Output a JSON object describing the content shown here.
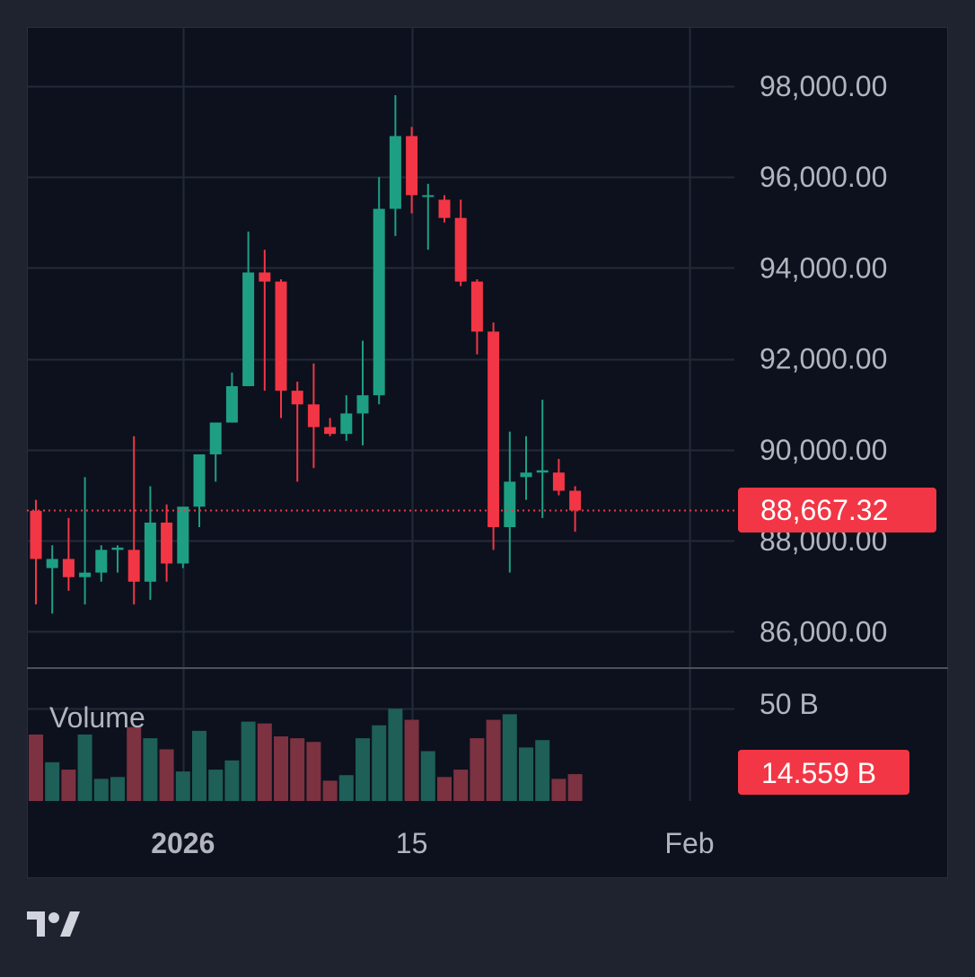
{
  "colors": {
    "up": "#1e9f84",
    "down": "#f23645",
    "up_volume": "#1e5f57",
    "down_volume": "#7c3241",
    "panel_bg": "#0c111d",
    "outer_bg": "#1f2330",
    "grid": "#232a37",
    "axis_text": "#b2b5be"
  },
  "chart_data": {
    "type": "candlestick",
    "price_axis": {
      "ylim": [
        85200,
        99300
      ],
      "ticks": [
        86000,
        88000,
        90000,
        92000,
        94000,
        96000,
        98000
      ],
      "tick_labels": [
        "86,000.00",
        "88,000.00",
        "90,000.00",
        "92,000.00",
        "94,000.00",
        "96,000.00",
        "98,000.00"
      ]
    },
    "time_axis": {
      "labels": [
        {
          "text": "2026",
          "index": 9,
          "bold": true
        },
        {
          "text": "15",
          "index": 23,
          "bold": false
        },
        {
          "text": "Feb",
          "index": 40,
          "bold": false
        }
      ],
      "slot_count": 44
    },
    "current_price": {
      "value": 88667.32,
      "label": "88,667.32"
    },
    "volume": {
      "label": "Volume",
      "max_label": "50 B",
      "current_label": "14.559 B",
      "current_value": 14.559,
      "ylim": [
        0,
        72
      ],
      "tick_value": 50
    },
    "candles": [
      {
        "o": 88660,
        "h": 88900,
        "l": 86600,
        "c": 87600,
        "v": 36
      },
      {
        "o": 87400,
        "h": 87900,
        "l": 86400,
        "c": 87600,
        "v": 21
      },
      {
        "o": 87600,
        "h": 88500,
        "l": 86900,
        "c": 87200,
        "v": 17
      },
      {
        "o": 87200,
        "h": 89400,
        "l": 86600,
        "c": 87300,
        "v": 36
      },
      {
        "o": 87300,
        "h": 87900,
        "l": 87100,
        "c": 87800,
        "v": 12
      },
      {
        "o": 87800,
        "h": 87900,
        "l": 87300,
        "c": 87850,
        "v": 13
      },
      {
        "o": 87800,
        "h": 90300,
        "l": 86600,
        "c": 87100,
        "v": 40
      },
      {
        "o": 87100,
        "h": 89200,
        "l": 86700,
        "c": 88400,
        "v": 34
      },
      {
        "o": 88400,
        "h": 88800,
        "l": 87100,
        "c": 87500,
        "v": 28
      },
      {
        "o": 87500,
        "h": 88700,
        "l": 87400,
        "c": 88750,
        "v": 16
      },
      {
        "o": 88750,
        "h": 89900,
        "l": 88300,
        "c": 89900,
        "v": 38
      },
      {
        "o": 89900,
        "h": 90600,
        "l": 89300,
        "c": 90600,
        "v": 17
      },
      {
        "o": 90600,
        "h": 91700,
        "l": 90600,
        "c": 91400,
        "v": 22
      },
      {
        "o": 91400,
        "h": 94800,
        "l": 91400,
        "c": 93900,
        "v": 43
      },
      {
        "o": 93900,
        "h": 94400,
        "l": 91300,
        "c": 93700,
        "v": 42
      },
      {
        "o": 93700,
        "h": 93750,
        "l": 90700,
        "c": 91300,
        "v": 35
      },
      {
        "o": 91300,
        "h": 91500,
        "l": 89300,
        "c": 91000,
        "v": 34
      },
      {
        "o": 91000,
        "h": 91900,
        "l": 89600,
        "c": 90500,
        "v": 32
      },
      {
        "o": 90500,
        "h": 90700,
        "l": 90300,
        "c": 90350,
        "v": 11
      },
      {
        "o": 90350,
        "h": 91200,
        "l": 90200,
        "c": 90800,
        "v": 14
      },
      {
        "o": 90800,
        "h": 92400,
        "l": 90100,
        "c": 91200,
        "v": 34
      },
      {
        "o": 91200,
        "h": 96000,
        "l": 91000,
        "c": 95300,
        "v": 41
      },
      {
        "o": 95300,
        "h": 97800,
        "l": 94700,
        "c": 96900,
        "v": 50
      },
      {
        "o": 96900,
        "h": 97100,
        "l": 95200,
        "c": 95600,
        "v": 44
      },
      {
        "o": 95600,
        "h": 95850,
        "l": 94400,
        "c": 95600,
        "v": 27
      },
      {
        "o": 95500,
        "h": 95600,
        "l": 95000,
        "c": 95100,
        "v": 13
      },
      {
        "o": 95100,
        "h": 95500,
        "l": 93600,
        "c": 93700,
        "v": 17
      },
      {
        "o": 93700,
        "h": 93750,
        "l": 92100,
        "c": 92600,
        "v": 34
      },
      {
        "o": 92600,
        "h": 92800,
        "l": 87800,
        "c": 88300,
        "v": 44
      },
      {
        "o": 88300,
        "h": 90400,
        "l": 87300,
        "c": 89300,
        "v": 47
      },
      {
        "o": 89400,
        "h": 90300,
        "l": 88900,
        "c": 89500,
        "v": 29
      },
      {
        "o": 89500,
        "h": 91100,
        "l": 88500,
        "c": 89550,
        "v": 33
      },
      {
        "o": 89500,
        "h": 89800,
        "l": 89000,
        "c": 89100,
        "v": 12
      },
      {
        "o": 89100,
        "h": 89200,
        "l": 88200,
        "c": 88667.32,
        "v": 14.559
      }
    ]
  }
}
